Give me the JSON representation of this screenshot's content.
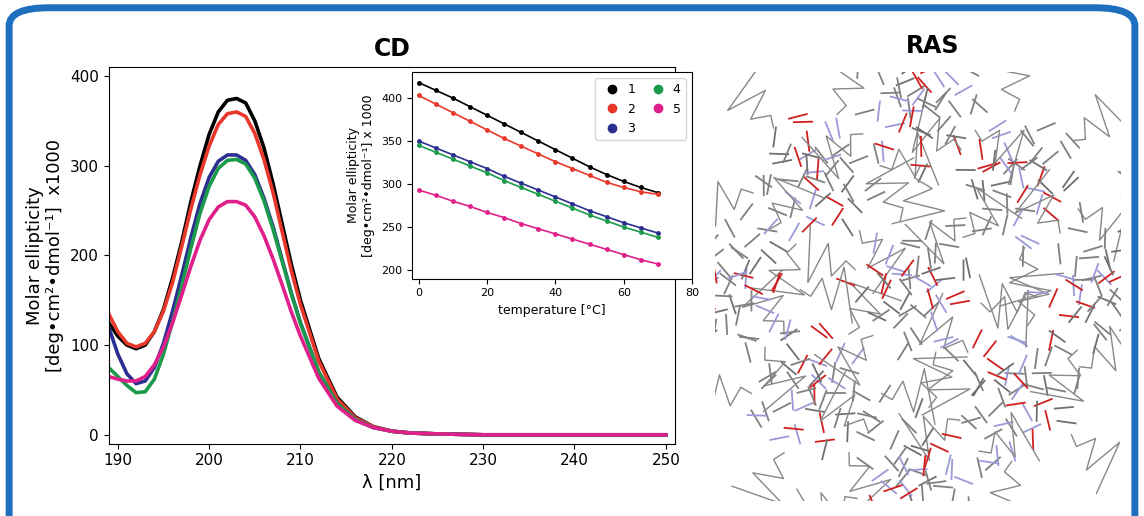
{
  "chart_data": [
    {
      "type": "line",
      "title": "CD",
      "x_label": "λ [nm]",
      "y_label": "Molar ellipticity\n[deg•cm²•dmol⁻¹]  x1000",
      "x": [
        189,
        190,
        191,
        192,
        193,
        194,
        195,
        196,
        197,
        198,
        199,
        200,
        201,
        202,
        203,
        204,
        205,
        206,
        207,
        208,
        209,
        210,
        212,
        214,
        216,
        218,
        220,
        222,
        225,
        230,
        235,
        240,
        245,
        250
      ],
      "xlim": [
        189,
        251
      ],
      "xticks": [
        190,
        200,
        210,
        220,
        230,
        240,
        250
      ],
      "ylim": [
        -10,
        410
      ],
      "yticks": [
        0,
        100,
        200,
        300,
        400
      ],
      "series": [
        {
          "color": "#000000",
          "values": [
            125,
            110,
            100,
            96,
            100,
            115,
            140,
            175,
            215,
            260,
            300,
            335,
            360,
            373,
            375,
            370,
            350,
            320,
            280,
            235,
            190,
            150,
            85,
            42,
            20,
            9,
            4,
            2,
            1,
            0,
            0,
            0,
            0,
            0
          ]
        },
        {
          "color": "#e8382b",
          "values": [
            135,
            115,
            102,
            98,
            102,
            115,
            138,
            170,
            210,
            252,
            290,
            322,
            346,
            358,
            360,
            355,
            336,
            307,
            270,
            226,
            183,
            145,
            82,
            40,
            19,
            9,
            4,
            2,
            1,
            0,
            0,
            0,
            0,
            0
          ]
        },
        {
          "color": "#2b2f8f",
          "values": [
            120,
            90,
            68,
            57,
            60,
            75,
            102,
            138,
            178,
            220,
            258,
            287,
            305,
            312,
            312,
            306,
            290,
            264,
            232,
            195,
            158,
            125,
            70,
            35,
            17,
            8,
            4,
            2,
            1,
            0,
            0,
            0,
            0,
            0
          ]
        },
        {
          "color": "#1a9a4a",
          "values": [
            75,
            65,
            55,
            47,
            48,
            62,
            90,
            126,
            166,
            208,
            247,
            277,
            297,
            306,
            307,
            302,
            286,
            261,
            229,
            193,
            157,
            124,
            70,
            35,
            17,
            8,
            4,
            2,
            1,
            0,
            0,
            0,
            0,
            0
          ]
        },
        {
          "color": "#e0208a",
          "values": [
            65,
            62,
            60,
            60,
            65,
            78,
            98,
            125,
            156,
            188,
            217,
            240,
            254,
            260,
            260,
            256,
            243,
            222,
            196,
            167,
            137,
            110,
            63,
            32,
            16,
            8,
            4,
            2,
            1,
            0,
            0,
            0,
            0,
            0
          ]
        }
      ]
    },
    {
      "type": "line",
      "legend": "upper right",
      "x_label": "temperature [°C]",
      "y_label": "Molar ellipticity\n[deg•cm²•dmol⁻¹] x 1000",
      "x": [
        0,
        5,
        10,
        15,
        20,
        25,
        30,
        35,
        40,
        45,
        50,
        55,
        60,
        65,
        70
      ],
      "xlim": [
        -2,
        80
      ],
      "xticks": [
        0,
        20,
        40,
        60,
        80
      ],
      "ylim": [
        190,
        430
      ],
      "yticks": [
        200,
        250,
        300,
        350,
        400
      ],
      "series": [
        {
          "name": "1",
          "color": "#000000",
          "marker": "o",
          "values": [
            418,
            409,
            400,
            390,
            380,
            370,
            360,
            350,
            340,
            330,
            320,
            311,
            303,
            296,
            290
          ]
        },
        {
          "name": "2",
          "color": "#e8382b",
          "marker": "o",
          "values": [
            403,
            393,
            383,
            373,
            363,
            353,
            344,
            335,
            326,
            318,
            310,
            302,
            296,
            291,
            288
          ]
        },
        {
          "name": "3",
          "color": "#2b2f8f",
          "marker": "o",
          "values": [
            350,
            342,
            334,
            326,
            318,
            309,
            301,
            293,
            285,
            277,
            269,
            262,
            255,
            249,
            243
          ]
        },
        {
          "name": "4",
          "color": "#1a9a4a",
          "marker": "o",
          "values": [
            345,
            337,
            329,
            321,
            313,
            304,
            296,
            288,
            280,
            272,
            264,
            257,
            250,
            244,
            238
          ]
        },
        {
          "name": "5",
          "color": "#e0208a",
          "marker": "o",
          "values": [
            293,
            287,
            280,
            274,
            267,
            261,
            254,
            248,
            242,
            236,
            230,
            224,
            218,
            212,
            207
          ]
        }
      ]
    }
  ],
  "structure_panel": {
    "title": "RAS"
  }
}
